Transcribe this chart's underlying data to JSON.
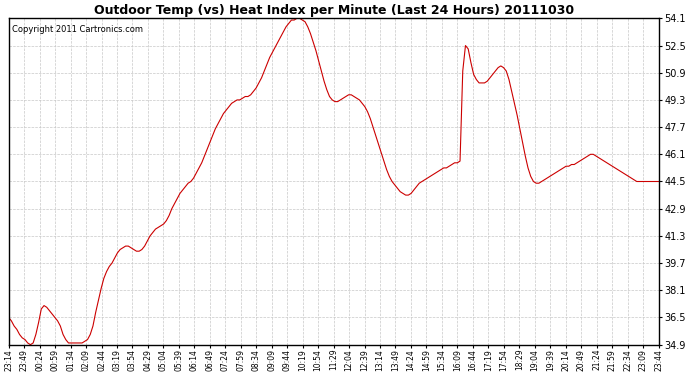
{
  "title": "Outdoor Temp (vs) Heat Index per Minute (Last 24 Hours) 20111030",
  "copyright": "Copyright 2011 Cartronics.com",
  "line_color": "#cc0000",
  "background_color": "#ffffff",
  "grid_color": "#c8c8c8",
  "ylim": [
    34.9,
    54.1
  ],
  "yticks": [
    34.9,
    36.5,
    38.1,
    39.7,
    41.3,
    42.9,
    44.5,
    46.1,
    47.7,
    49.3,
    50.9,
    52.5,
    54.1
  ],
  "xtick_labels": [
    "23:14",
    "23:49",
    "00:24",
    "00:59",
    "01:34",
    "02:09",
    "02:44",
    "03:19",
    "03:54",
    "04:29",
    "05:04",
    "05:39",
    "06:14",
    "06:49",
    "07:24",
    "07:59",
    "08:34",
    "09:09",
    "09:44",
    "10:19",
    "10:54",
    "11:29",
    "12:04",
    "12:39",
    "13:14",
    "13:49",
    "14:24",
    "14:59",
    "15:34",
    "16:09",
    "16:44",
    "17:19",
    "17:54",
    "18:29",
    "19:04",
    "19:39",
    "20:14",
    "20:49",
    "21:24",
    "21:59",
    "22:34",
    "23:09",
    "23:44"
  ],
  "y_values": [
    36.5,
    36.3,
    36.0,
    35.8,
    35.5,
    35.3,
    35.2,
    35.0,
    34.9,
    35.0,
    35.5,
    36.2,
    37.0,
    37.2,
    37.1,
    36.9,
    36.7,
    36.5,
    36.3,
    36.0,
    35.5,
    35.2,
    35.0,
    35.0,
    35.0,
    35.0,
    35.0,
    35.0,
    35.1,
    35.2,
    35.5,
    36.0,
    36.8,
    37.5,
    38.2,
    38.8,
    39.2,
    39.5,
    39.7,
    40.0,
    40.3,
    40.5,
    40.6,
    40.7,
    40.7,
    40.6,
    40.5,
    40.4,
    40.4,
    40.5,
    40.7,
    41.0,
    41.3,
    41.5,
    41.7,
    41.8,
    41.9,
    42.0,
    42.2,
    42.5,
    42.9,
    43.2,
    43.5,
    43.8,
    44.0,
    44.2,
    44.4,
    44.5,
    44.7,
    45.0,
    45.3,
    45.6,
    46.0,
    46.4,
    46.8,
    47.2,
    47.6,
    47.9,
    48.2,
    48.5,
    48.7,
    48.9,
    49.1,
    49.2,
    49.3,
    49.3,
    49.4,
    49.5,
    49.5,
    49.6,
    49.8,
    50.0,
    50.3,
    50.6,
    51.0,
    51.4,
    51.8,
    52.1,
    52.4,
    52.7,
    53.0,
    53.3,
    53.6,
    53.8,
    54.0,
    54.0,
    54.1,
    54.1,
    54.0,
    53.9,
    53.6,
    53.2,
    52.7,
    52.2,
    51.6,
    51.0,
    50.4,
    49.9,
    49.5,
    49.3,
    49.2,
    49.2,
    49.3,
    49.4,
    49.5,
    49.6,
    49.6,
    49.5,
    49.4,
    49.3,
    49.1,
    48.9,
    48.6,
    48.2,
    47.7,
    47.2,
    46.7,
    46.2,
    45.7,
    45.2,
    44.8,
    44.5,
    44.3,
    44.1,
    43.9,
    43.8,
    43.7,
    43.7,
    43.8,
    44.0,
    44.2,
    44.4,
    44.5,
    44.6,
    44.7,
    44.8,
    44.9,
    45.0,
    45.1,
    45.2,
    45.3,
    45.3,
    45.4,
    45.5,
    45.6,
    45.6,
    45.7,
    51.0,
    52.5,
    52.3,
    51.5,
    50.8,
    50.5,
    50.3,
    50.3,
    50.3,
    50.4,
    50.6,
    50.8,
    51.0,
    51.2,
    51.3,
    51.2,
    51.0,
    50.5,
    49.8,
    49.1,
    48.4,
    47.6,
    46.8,
    46.0,
    45.3,
    44.8,
    44.5,
    44.4,
    44.4,
    44.5,
    44.6,
    44.7,
    44.8,
    44.9,
    45.0,
    45.1,
    45.2,
    45.3,
    45.4,
    45.4,
    45.5,
    45.5,
    45.6,
    45.7,
    45.8,
    45.9,
    46.0,
    46.1,
    46.1,
    46.0,
    45.9,
    45.8,
    45.7,
    45.6,
    45.5,
    45.4,
    45.3,
    45.2,
    45.1,
    45.0,
    44.9,
    44.8,
    44.7,
    44.6,
    44.5,
    44.5,
    44.5,
    44.5,
    44.5,
    44.5,
    44.5,
    44.5,
    44.5
  ]
}
